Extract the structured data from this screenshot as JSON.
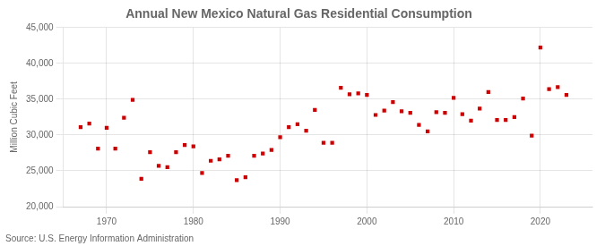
{
  "chart_data": {
    "type": "scatter",
    "title": "Annual New Mexico Natural Gas Residential Consumption",
    "ylabel": "Million Cubic Feet",
    "annotation": "Source: U.S. Energy Information Administration",
    "x": [
      1967,
      1968,
      1969,
      1970,
      1971,
      1972,
      1973,
      1974,
      1975,
      1976,
      1977,
      1978,
      1979,
      1980,
      1981,
      1982,
      1983,
      1984,
      1985,
      1986,
      1987,
      1988,
      1989,
      1990,
      1991,
      1992,
      1993,
      1994,
      1995,
      1996,
      1997,
      1998,
      1999,
      2000,
      2001,
      2002,
      2003,
      2004,
      2005,
      2006,
      2007,
      2008,
      2009,
      2010,
      2011,
      2012,
      2013,
      2014,
      2015,
      2016,
      2017,
      2018,
      2019,
      2020,
      2021,
      2022,
      2023
    ],
    "values": [
      31100,
      31600,
      28100,
      31000,
      28100,
      32400,
      34900,
      23900,
      27600,
      25700,
      25500,
      27600,
      28600,
      28400,
      24700,
      26400,
      26600,
      27100,
      23700,
      24100,
      27100,
      27400,
      27900,
      29700,
      31100,
      31500,
      30600,
      33500,
      28900,
      28900,
      36600,
      35700,
      35800,
      35600,
      32800,
      33400,
      34600,
      33300,
      33100,
      31400,
      30500,
      33200,
      33100,
      35200,
      32900,
      32000,
      33700,
      36000,
      32100,
      32100,
      32500,
      35100,
      29900,
      42200,
      36400,
      36700,
      35600
    ],
    "color": "#cc0000",
    "marker": "square",
    "xlim": [
      1965,
      2026
    ],
    "xticks": [
      1970,
      1980,
      1990,
      2000,
      2010,
      2020
    ],
    "ylim": [
      20000,
      45000
    ],
    "yticks": [
      {
        "value": 20000,
        "label": "20,000"
      },
      {
        "value": 25000,
        "label": "25,000"
      },
      {
        "value": 30000,
        "label": "30,000"
      },
      {
        "value": 35000,
        "label": "35,000"
      },
      {
        "value": 40000,
        "label": "40,000"
      },
      {
        "value": 45000,
        "label": "45,000"
      }
    ],
    "grid": true
  }
}
